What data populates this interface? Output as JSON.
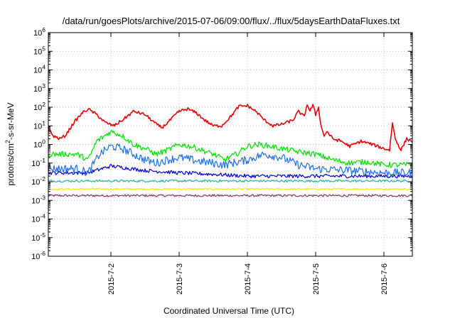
{
  "chart_data": {
    "type": "line",
    "title": "/data/run/goesPlots/archive/2015-07-06/09:00/flux/../flux/5daysEarthDataFluxes.txt",
    "xlabel": "Coordinated Universal Time (UTC)",
    "ylabel_base": "protons/cm",
    "ylabel_sup": "2",
    "ylabel_rest": "-s-sr-MeV",
    "xlim": [
      "2015-07-01T02:00",
      "2015-07-06T10:00"
    ],
    "y_scale": "log",
    "ylim": [
      1e-06,
      1000000.0
    ],
    "y_ticks": [
      {
        "base": "10",
        "exp": "-6"
      },
      {
        "base": "10",
        "exp": "-5"
      },
      {
        "base": "10",
        "exp": "-4"
      },
      {
        "base": "10",
        "exp": "-3"
      },
      {
        "base": "10",
        "exp": "-2"
      },
      {
        "base": "10",
        "exp": "-1"
      },
      {
        "base": "10",
        "exp": "0"
      },
      {
        "base": "10",
        "exp": "1"
      },
      {
        "base": "10",
        "exp": "2"
      },
      {
        "base": "10",
        "exp": "3"
      },
      {
        "base": "10",
        "exp": "4"
      },
      {
        "base": "10",
        "exp": "5"
      },
      {
        "base": "10",
        "exp": "6"
      }
    ],
    "x_ticks": [
      {
        "date": "2015-07-02",
        "label": "2015-7-2"
      },
      {
        "date": "2015-07-03",
        "label": "2015-7-3"
      },
      {
        "date": "2015-07-04",
        "label": "2015-7-4"
      },
      {
        "date": "2015-07-05",
        "label": "2015-7-5"
      },
      {
        "date": "2015-07-06",
        "label": "2015-7-6"
      }
    ],
    "grid": true,
    "series": [
      {
        "color": "#e8000b",
        "noise": 0.08,
        "points": [
          [
            "2015-07-01T02:00",
            8
          ],
          [
            "2015-07-01T03:30",
            3
          ],
          [
            "2015-07-01T06:00",
            2
          ],
          [
            "2015-07-01T08:00",
            3
          ],
          [
            "2015-07-01T11:00",
            15
          ],
          [
            "2015-07-01T14:00",
            50
          ],
          [
            "2015-07-01T16:00",
            80
          ],
          [
            "2015-07-01T19:00",
            40
          ],
          [
            "2015-07-01T22:00",
            15
          ],
          [
            "2015-07-02T01:00",
            10
          ],
          [
            "2015-07-02T04:00",
            20
          ],
          [
            "2015-07-02T08:00",
            60
          ],
          [
            "2015-07-02T12:00",
            40
          ],
          [
            "2015-07-02T16:00",
            12
          ],
          [
            "2015-07-02T18:00",
            8
          ],
          [
            "2015-07-02T20:00",
            15
          ],
          [
            "2015-07-03T00:00",
            60
          ],
          [
            "2015-07-03T03:00",
            80
          ],
          [
            "2015-07-03T06:00",
            50
          ],
          [
            "2015-07-03T09:00",
            20
          ],
          [
            "2015-07-03T12:00",
            10
          ],
          [
            "2015-07-03T15:00",
            10
          ],
          [
            "2015-07-03T18:00",
            30
          ],
          [
            "2015-07-03T21:00",
            110
          ],
          [
            "2015-07-04T00:00",
            120
          ],
          [
            "2015-07-04T03:00",
            60
          ],
          [
            "2015-07-04T06:00",
            20
          ],
          [
            "2015-07-04T09:00",
            10
          ],
          [
            "2015-07-04T12:00",
            12
          ],
          [
            "2015-07-04T16:00",
            20
          ],
          [
            "2015-07-04T18:00",
            60
          ],
          [
            "2015-07-04T20:00",
            30
          ],
          [
            "2015-07-04T21:00",
            150
          ],
          [
            "2015-07-04T22:00",
            60
          ],
          [
            "2015-07-04T23:00",
            130
          ],
          [
            "2015-07-05T00:00",
            40
          ],
          [
            "2015-07-05T01:00",
            100
          ],
          [
            "2015-07-05T02:00",
            8
          ],
          [
            "2015-07-05T03:00",
            3
          ],
          [
            "2015-07-05T04:00",
            5
          ],
          [
            "2015-07-05T06:00",
            2
          ],
          [
            "2015-07-05T09:00",
            1.5
          ],
          [
            "2015-07-05T12:00",
            0.8
          ],
          [
            "2015-07-05T16:00",
            1.5
          ],
          [
            "2015-07-05T20:00",
            1
          ],
          [
            "2015-07-06T00:00",
            0.6
          ],
          [
            "2015-07-06T02:00",
            0.5
          ],
          [
            "2015-07-06T03:00",
            15
          ],
          [
            "2015-07-06T04:00",
            2
          ],
          [
            "2015-07-06T06:00",
            0.5
          ],
          [
            "2015-07-06T08:00",
            2
          ],
          [
            "2015-07-06T10:00",
            1.5
          ]
        ]
      },
      {
        "color": "#00e000",
        "noise": 0.15,
        "points": [
          [
            "2015-07-01T02:00",
            0.3
          ],
          [
            "2015-07-01T12:00",
            0.3
          ],
          [
            "2015-07-01T16:00",
            0.15
          ],
          [
            "2015-07-01T19:00",
            1.5
          ],
          [
            "2015-07-01T22:00",
            3
          ],
          [
            "2015-07-02T00:00",
            5
          ],
          [
            "2015-07-02T04:00",
            3
          ],
          [
            "2015-07-02T08:00",
            1
          ],
          [
            "2015-07-02T12:00",
            0.6
          ],
          [
            "2015-07-02T16:00",
            0.3
          ],
          [
            "2015-07-02T20:00",
            0.5
          ],
          [
            "2015-07-03T00:00",
            1
          ],
          [
            "2015-07-03T04:00",
            0.8
          ],
          [
            "2015-07-03T08:00",
            0.5
          ],
          [
            "2015-07-03T12:00",
            0.3
          ],
          [
            "2015-07-03T16:00",
            0.15
          ],
          [
            "2015-07-03T20:00",
            0.3
          ],
          [
            "2015-07-04T00:00",
            0.8
          ],
          [
            "2015-07-04T04:00",
            1
          ],
          [
            "2015-07-04T08:00",
            0.8
          ],
          [
            "2015-07-04T12:00",
            0.6
          ],
          [
            "2015-07-04T18:00",
            0.4
          ],
          [
            "2015-07-05T00:00",
            0.3
          ],
          [
            "2015-07-05T06:00",
            0.15
          ],
          [
            "2015-07-05T12:00",
            0.1
          ],
          [
            "2015-07-05T18:00",
            0.12
          ],
          [
            "2015-07-06T00:00",
            0.08
          ],
          [
            "2015-07-06T10:00",
            0.08
          ]
        ]
      },
      {
        "color": "#1e6fe8",
        "noise": 0.22,
        "points": [
          [
            "2015-07-01T02:00",
            0.05
          ],
          [
            "2015-07-01T12:00",
            0.05
          ],
          [
            "2015-07-01T16:00",
            0.03
          ],
          [
            "2015-07-01T20:00",
            0.3
          ],
          [
            "2015-07-02T00:00",
            0.8
          ],
          [
            "2015-07-02T04:00",
            0.6
          ],
          [
            "2015-07-02T08:00",
            0.3
          ],
          [
            "2015-07-02T12:00",
            0.15
          ],
          [
            "2015-07-02T16:00",
            0.1
          ],
          [
            "2015-07-02T20:00",
            0.15
          ],
          [
            "2015-07-03T00:00",
            0.2
          ],
          [
            "2015-07-03T08:00",
            0.12
          ],
          [
            "2015-07-03T16:00",
            0.08
          ],
          [
            "2015-07-04T00:00",
            0.15
          ],
          [
            "2015-07-04T06:00",
            0.3
          ],
          [
            "2015-07-04T12:00",
            0.2
          ],
          [
            "2015-07-04T18:00",
            0.08
          ],
          [
            "2015-07-05T00:00",
            0.05
          ],
          [
            "2015-07-05T12:00",
            0.04
          ],
          [
            "2015-07-06T00:00",
            0.03
          ],
          [
            "2015-07-06T10:00",
            0.03
          ]
        ]
      },
      {
        "color": "#0000c8",
        "noise": 0.1,
        "points": [
          [
            "2015-07-01T02:00",
            0.03
          ],
          [
            "2015-07-01T16:00",
            0.03
          ],
          [
            "2015-07-02T00:00",
            0.07
          ],
          [
            "2015-07-02T12:00",
            0.04
          ],
          [
            "2015-07-03T00:00",
            0.03
          ],
          [
            "2015-07-03T12:00",
            0.025
          ],
          [
            "2015-07-04T00:00",
            0.02
          ],
          [
            "2015-07-05T00:00",
            0.02
          ],
          [
            "2015-07-06T10:00",
            0.02
          ]
        ]
      },
      {
        "color": "#1ab8a8",
        "noise": 0.06,
        "points": [
          [
            "2015-07-01T02:00",
            0.011
          ],
          [
            "2015-07-03T00:00",
            0.011
          ],
          [
            "2015-07-06T10:00",
            0.011
          ]
        ]
      },
      {
        "color": "#f5e600",
        "noise": 0.05,
        "points": [
          [
            "2015-07-01T02:00",
            0.004
          ],
          [
            "2015-07-06T10:00",
            0.004
          ]
        ]
      },
      {
        "color": "#8b2a6a",
        "noise": 0.06,
        "points": [
          [
            "2015-07-01T02:00",
            0.0018
          ],
          [
            "2015-07-06T10:00",
            0.0018
          ]
        ]
      }
    ]
  }
}
